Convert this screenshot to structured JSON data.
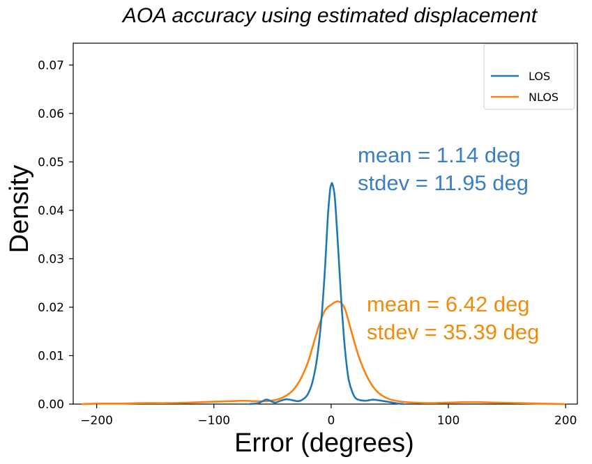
{
  "chart_data": {
    "type": "line",
    "title": "AOA accuracy using estimated displacement",
    "xlabel": "Error (degrees)",
    "ylabel": "Density",
    "xlim": [
      -220,
      210
    ],
    "ylim": [
      0,
      0.0745
    ],
    "xticks": [
      -200,
      -100,
      0,
      100,
      200
    ],
    "xtick_labels": [
      "−200",
      "−100",
      "0",
      "100",
      "200"
    ],
    "yticks": [
      0.0,
      0.01,
      0.02,
      0.03,
      0.04,
      0.05,
      0.06,
      0.07
    ],
    "ytick_labels": [
      "0.00",
      "0.01",
      "0.02",
      "0.03",
      "0.04",
      "0.05",
      "0.06",
      "0.07"
    ],
    "grid": false,
    "legend_position": "top-right",
    "series": [
      {
        "name": "LOS",
        "color": "#1f77b4",
        "points": [
          [
            -70,
            0.0
          ],
          [
            -62,
            0.0002
          ],
          [
            -56,
            0.0009
          ],
          [
            -53,
            0.0008
          ],
          [
            -48,
            0.0003
          ],
          [
            -43,
            0.0007
          ],
          [
            -38,
            0.001
          ],
          [
            -33,
            0.0008
          ],
          [
            -28,
            0.0006
          ],
          [
            -24,
            0.001
          ],
          [
            -20,
            0.002
          ],
          [
            -16,
            0.0045
          ],
          [
            -12,
            0.0095
          ],
          [
            -8,
            0.0185
          ],
          [
            -5,
            0.029
          ],
          [
            -3,
            0.038
          ],
          [
            -1,
            0.044
          ],
          [
            0,
            0.0452
          ],
          [
            1,
            0.0455
          ],
          [
            3,
            0.043
          ],
          [
            5,
            0.036
          ],
          [
            7,
            0.028
          ],
          [
            9,
            0.02
          ],
          [
            11,
            0.0135
          ],
          [
            13,
            0.0085
          ],
          [
            15,
            0.005
          ],
          [
            18,
            0.0025
          ],
          [
            21,
            0.0012
          ],
          [
            25,
            0.0008
          ],
          [
            30,
            0.0007
          ],
          [
            35,
            0.0009
          ],
          [
            40,
            0.0008
          ],
          [
            45,
            0.0006
          ],
          [
            50,
            0.0004
          ],
          [
            55,
            0.0002
          ],
          [
            62,
            0.0
          ]
        ]
      },
      {
        "name": "NLOS",
        "color": "#ff7f0e",
        "points": [
          [
            -212,
            0.0
          ],
          [
            -200,
            0.0001
          ],
          [
            -180,
            0.0001
          ],
          [
            -160,
            0.0002
          ],
          [
            -140,
            0.0002
          ],
          [
            -120,
            0.0003
          ],
          [
            -100,
            0.0005
          ],
          [
            -85,
            0.0006
          ],
          [
            -75,
            0.0007
          ],
          [
            -65,
            0.0006
          ],
          [
            -55,
            0.0006
          ],
          [
            -45,
            0.001
          ],
          [
            -38,
            0.0018
          ],
          [
            -32,
            0.003
          ],
          [
            -26,
            0.0052
          ],
          [
            -20,
            0.0085
          ],
          [
            -15,
            0.0125
          ],
          [
            -10,
            0.0165
          ],
          [
            -6,
            0.019
          ],
          [
            -3,
            0.02
          ],
          [
            0,
            0.0205
          ],
          [
            3,
            0.021
          ],
          [
            6,
            0.0212
          ],
          [
            9,
            0.0208
          ],
          [
            12,
            0.0195
          ],
          [
            15,
            0.017
          ],
          [
            19,
            0.0135
          ],
          [
            24,
            0.0095
          ],
          [
            30,
            0.006
          ],
          [
            36,
            0.0035
          ],
          [
            42,
            0.002
          ],
          [
            50,
            0.001
          ],
          [
            60,
            0.0005
          ],
          [
            70,
            0.0003
          ],
          [
            85,
            0.0002
          ],
          [
            100,
            0.0003
          ],
          [
            115,
            0.0004
          ],
          [
            125,
            0.0004
          ],
          [
            140,
            0.0003
          ],
          [
            160,
            0.0002
          ],
          [
            180,
            0.0001
          ],
          [
            200,
            0.0
          ]
        ]
      }
    ],
    "annotations": [
      {
        "id": "los-mean",
        "text": "mean = 1.14 deg",
        "color": "#3a7fc4"
      },
      {
        "id": "los-stdev",
        "text": "stdev = 11.95 deg",
        "color": "#3a7fc4"
      },
      {
        "id": "nlos-mean",
        "text": "mean = 6.42 deg",
        "color": "#f08c0c"
      },
      {
        "id": "nlos-stdev",
        "text": "stdev = 35.39 deg",
        "color": "#f08c0c"
      }
    ]
  }
}
